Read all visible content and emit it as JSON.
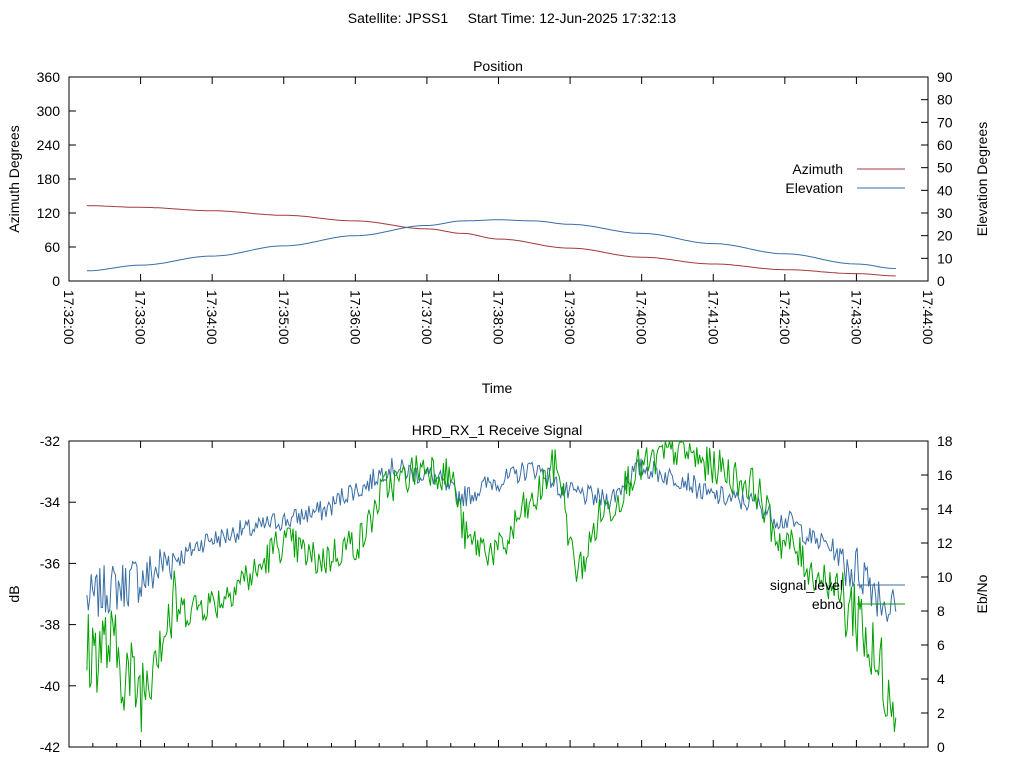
{
  "figure": {
    "header": "Satellite: JPSS1     Start Time: 12-Jun-2025 17:32:13"
  },
  "chart_data": [
    {
      "type": "line",
      "title": "Position",
      "xlabel": "Time",
      "ylabel_left": "Azimuth Degrees",
      "ylabel_right": "Elevation Degrees",
      "x_range": [
        "17:32:00",
        "17:44:00"
      ],
      "x_ticks": [
        "17:32:00",
        "17:33:00",
        "17:34:00",
        "17:35:00",
        "17:36:00",
        "17:37:00",
        "17:38:00",
        "17:39:00",
        "17:40:00",
        "17:41:00",
        "17:42:00",
        "17:43:00",
        "17:44:00"
      ],
      "ylim_left": [
        0,
        360
      ],
      "yticks_left": [
        0,
        60,
        120,
        180,
        240,
        300,
        360
      ],
      "ylim_right": [
        0,
        90
      ],
      "yticks_right": [
        0,
        10,
        20,
        30,
        40,
        50,
        60,
        70,
        80,
        90
      ],
      "grid": false,
      "legend_position": "right",
      "series": [
        {
          "name": "Azimuth",
          "axis": "left",
          "color": "#a33a3a",
          "x_minutes": [
            0.25,
            1,
            2,
            3,
            4,
            5,
            5.5,
            6,
            7,
            8,
            9,
            10,
            11,
            11.55
          ],
          "values": [
            133,
            130,
            124,
            116,
            106,
            92,
            84,
            74,
            58,
            42,
            30,
            20,
            13,
            9
          ]
        },
        {
          "name": "Elevation",
          "axis": "right",
          "color": "#3a6ea5",
          "x_minutes": [
            0.25,
            1,
            2,
            3,
            4,
            5,
            5.5,
            6,
            6.5,
            7,
            8,
            9,
            10,
            11,
            11.55
          ],
          "values": [
            4.5,
            7,
            11,
            15.5,
            20,
            24.5,
            26.5,
            27,
            26.5,
            25,
            21,
            16.5,
            12,
            7.5,
            5.5
          ]
        }
      ]
    },
    {
      "type": "line",
      "title": "HRD_RX_1 Receive Signal",
      "ylabel_left": "dB",
      "ylabel_right": "Eb/No",
      "ylim_left": [
        -42,
        -32
      ],
      "yticks_left": [
        -42,
        -40,
        -38,
        -36,
        -34,
        -32
      ],
      "ylim_right": [
        0,
        18
      ],
      "yticks_right": [
        0,
        2,
        4,
        6,
        8,
        10,
        12,
        14,
        16,
        18
      ],
      "x_range": [
        "17:32:00",
        "17:44:00"
      ],
      "grid": false,
      "legend_position": "right",
      "series": [
        {
          "name": "signal_level",
          "axis": "left",
          "color": "#3a6ea5",
          "x_minutes": [
            0.25,
            0.6,
            1,
            1.5,
            2,
            2.5,
            3,
            3.5,
            4,
            4.5,
            5,
            5.5,
            6,
            6.5,
            7,
            7.5,
            8,
            8.5,
            9,
            9.5,
            10,
            10.5,
            11,
            11.55
          ],
          "values": [
            -37.2,
            -36.8,
            -36.5,
            -35.8,
            -35.2,
            -34.9,
            -34.6,
            -34.3,
            -33.6,
            -32.9,
            -33.1,
            -33.8,
            -33.3,
            -32.9,
            -33.7,
            -33.9,
            -32.9,
            -33.2,
            -33.8,
            -34.0,
            -34.6,
            -35.3,
            -36.2,
            -37.5
          ]
        },
        {
          "name": "ebno",
          "axis": "right",
          "color": "#00a000",
          "x_minutes": [
            0.25,
            0.5,
            1,
            1.3,
            1.5,
            2,
            2.5,
            3,
            3.5,
            4,
            4.5,
            5,
            5.3,
            5.6,
            6,
            6.4,
            6.8,
            7.1,
            7.5,
            8,
            8.5,
            9,
            9.5,
            10,
            10.5,
            11,
            11.3,
            11.55
          ],
          "values": [
            5.5,
            6,
            3.5,
            7,
            8,
            8.5,
            10,
            12,
            11,
            12,
            15.5,
            16.5,
            16,
            12,
            11.5,
            14,
            16.5,
            10.5,
            14,
            16.5,
            17.5,
            16.5,
            15.5,
            12,
            10,
            8,
            4.5,
            3.5
          ]
        }
      ]
    }
  ]
}
